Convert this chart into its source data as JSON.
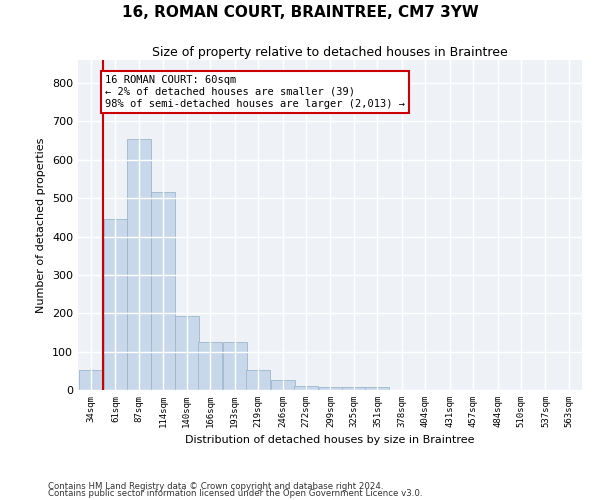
{
  "title": "16, ROMAN COURT, BRAINTREE, CM7 3YW",
  "subtitle": "Size of property relative to detached houses in Braintree",
  "xlabel": "Distribution of detached houses by size in Braintree",
  "ylabel": "Number of detached properties",
  "bar_color": "#c8d8ea",
  "bar_edge_color": "#9ab8cc",
  "background_color": "#eef2f7",
  "grid_color": "#ffffff",
  "bins": [
    "34sqm",
    "61sqm",
    "87sqm",
    "114sqm",
    "140sqm",
    "166sqm",
    "193sqm",
    "219sqm",
    "246sqm",
    "272sqm",
    "299sqm",
    "325sqm",
    "351sqm",
    "378sqm",
    "404sqm",
    "431sqm",
    "457sqm",
    "484sqm",
    "510sqm",
    "537sqm",
    "563sqm"
  ],
  "values": [
    52,
    445,
    655,
    515,
    193,
    125,
    125,
    52,
    27,
    10,
    7,
    7,
    7,
    0,
    0,
    0,
    0,
    0,
    0,
    0,
    0
  ],
  "bin_edges": [
    34,
    61,
    87,
    114,
    140,
    166,
    193,
    219,
    246,
    272,
    299,
    325,
    351,
    378,
    404,
    431,
    457,
    484,
    510,
    537,
    563
  ],
  "property_line_x": 61,
  "annotation_text": "16 ROMAN COURT: 60sqm\n← 2% of detached houses are smaller (39)\n98% of semi-detached houses are larger (2,013) →",
  "annotation_box_color": "#ffffff",
  "annotation_box_edge": "#cc0000",
  "vline_color": "#cc0000",
  "ylim": [
    0,
    860
  ],
  "yticks": [
    0,
    100,
    200,
    300,
    400,
    500,
    600,
    700,
    800
  ],
  "footer1": "Contains HM Land Registry data © Crown copyright and database right 2024.",
  "footer2": "Contains public sector information licensed under the Open Government Licence v3.0."
}
